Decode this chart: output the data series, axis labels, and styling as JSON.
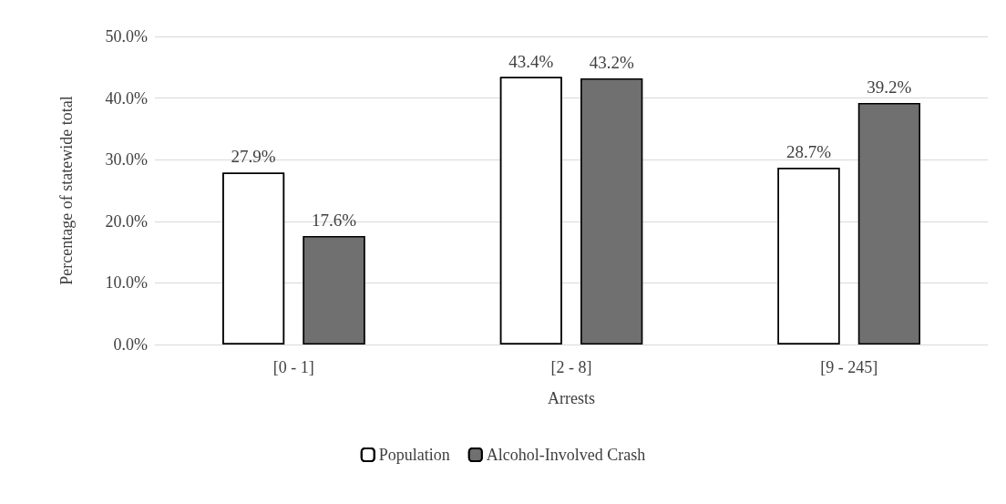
{
  "chart_data": {
    "type": "bar",
    "xlabel": "Arrests",
    "ylabel": "Percentage of statewide total",
    "categories": [
      "[0 - 1]",
      "[2 - 8]",
      "[9 - 245]"
    ],
    "series": [
      {
        "name": "Population",
        "color": "#ffffff",
        "values": [
          27.9,
          43.4,
          28.7
        ],
        "value_labels": [
          "27.9%",
          "43.4%",
          "28.7%"
        ]
      },
      {
        "name": "Alcohol-Involved Crash",
        "color": "#000000",
        "values": [
          17.6,
          43.2,
          39.2
        ],
        "value_labels": [
          "17.6%",
          "43.2%",
          "39.2%"
        ]
      }
    ],
    "ylim": [
      0,
      50
    ],
    "yticks": [
      {
        "value": 0,
        "label": "0.0%"
      },
      {
        "value": 10,
        "label": "10.0%"
      },
      {
        "value": 20,
        "label": "20.0%"
      },
      {
        "value": 30,
        "label": "30.0%"
      },
      {
        "value": 40,
        "label": "40.0%"
      },
      {
        "value": 50,
        "label": "50.0%"
      }
    ],
    "grid": "y",
    "legend": "bottom"
  }
}
